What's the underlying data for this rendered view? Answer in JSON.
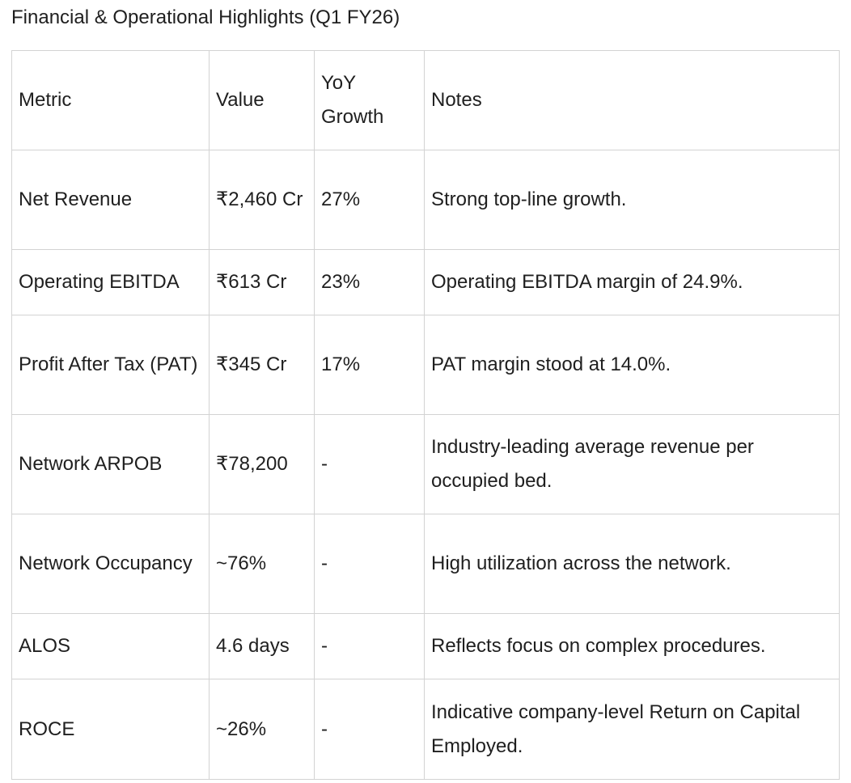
{
  "title": "Financial & Operational Highlights (Q1 FY26)",
  "table": {
    "headers": {
      "metric": "Metric",
      "value": "Value",
      "yoy": "YoY Growth",
      "notes": "Notes"
    },
    "rows": [
      {
        "metric": "Net Revenue",
        "value": "₹2,460 Cr",
        "yoy": "27%",
        "notes": "Strong top-line growth.",
        "value_bold": true
      },
      {
        "metric": "Operating EBITDA",
        "value": "₹613 Cr",
        "yoy": "23%",
        "notes": "Operating EBITDA margin of 24.9%.",
        "value_bold": true
      },
      {
        "metric": "Profit After Tax (PAT)",
        "value": "₹345 Cr",
        "yoy": "17%",
        "notes": "PAT margin stood at 14.0%.",
        "value_bold": false
      },
      {
        "metric": "Network ARPOB",
        "value": "₹78,200",
        "yoy": "-",
        "notes": "Industry-leading average revenue per occupied bed.",
        "value_bold": false
      },
      {
        "metric": "Network Occupancy",
        "value": "~76%",
        "yoy": "-",
        "notes": "High utilization across the network.",
        "value_bold": false
      },
      {
        "metric": "ALOS",
        "value": "4.6 days",
        "yoy": "-",
        "notes": "Reflects focus on complex procedures.",
        "value_bold": false
      },
      {
        "metric": "ROCE",
        "value": "~26%",
        "yoy": "-",
        "notes": "Indicative company-level Return on Capital Employed.",
        "value_bold": false
      }
    ]
  }
}
